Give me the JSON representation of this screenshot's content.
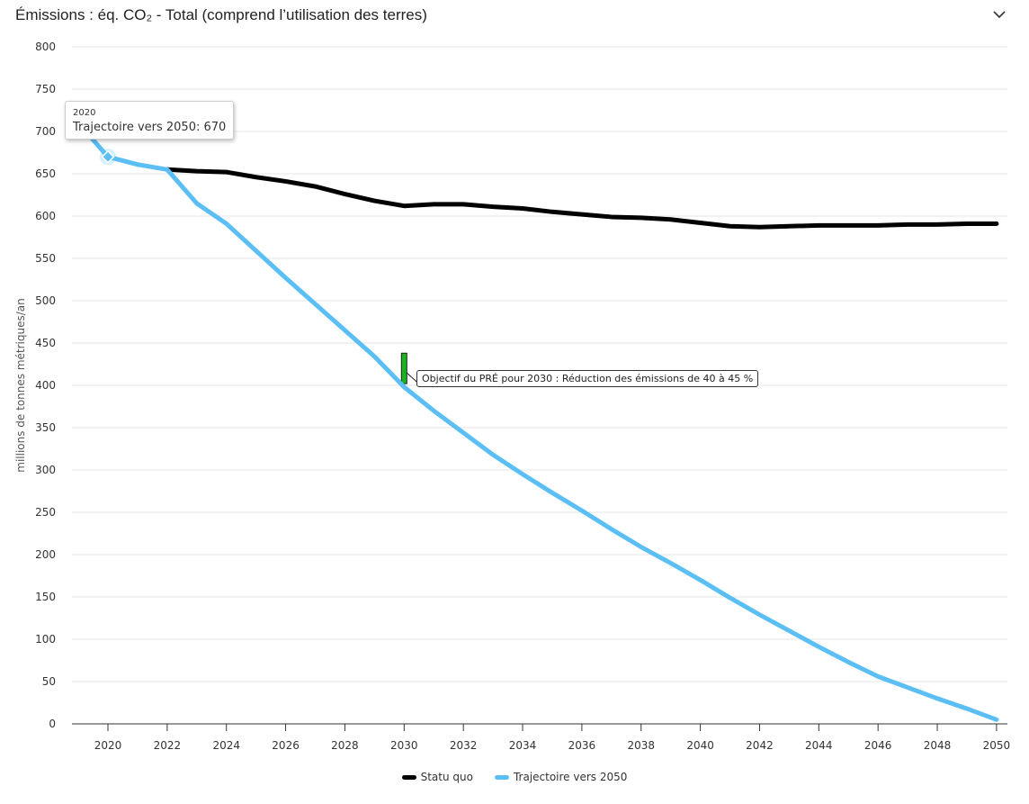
{
  "header": {
    "title": "Émissions : éq. CO₂ - Total (comprend l’utilisation des terres)",
    "collapse_icon": "chevron-down-icon"
  },
  "chart_data": {
    "type": "line",
    "title": "Émissions : éq. CO₂ - Total (comprend l’utilisation des terres)",
    "xlabel": "",
    "ylabel": "millions de tonnes métriques/an",
    "ylim": [
      0,
      800
    ],
    "xlim": [
      2019,
      2050
    ],
    "yticks": [
      "0",
      "50",
      "100",
      "150",
      "200",
      "250",
      "300",
      "350",
      "400",
      "450",
      "500",
      "550",
      "600",
      "650",
      "700",
      "750",
      "800"
    ],
    "xticks": [
      "2020",
      "2022",
      "2024",
      "2026",
      "2028",
      "2030",
      "2032",
      "2034",
      "2036",
      "2038",
      "2040",
      "2042",
      "2044",
      "2046",
      "2048",
      "2050"
    ],
    "grid": true,
    "legend_position": "bottom",
    "series": [
      {
        "name": "Statu quo",
        "color": "#000000",
        "x": [
          2022,
          2023,
          2024,
          2025,
          2026,
          2027,
          2028,
          2029,
          2030,
          2031,
          2032,
          2033,
          2034,
          2035,
          2036,
          2037,
          2038,
          2039,
          2040,
          2041,
          2042,
          2043,
          2044,
          2045,
          2046,
          2047,
          2048,
          2049,
          2050
        ],
        "values": [
          655,
          653,
          652,
          646,
          641,
          635,
          626,
          618,
          612,
          614,
          614,
          611,
          609,
          605,
          602,
          599,
          598,
          596,
          592,
          588,
          587,
          588,
          589,
          589,
          589,
          590,
          590,
          591,
          591
        ]
      },
      {
        "name": "Trajectoire vers 2050",
        "color": "#5bbff5",
        "x": [
          2019,
          2020,
          2021,
          2022,
          2023,
          2024,
          2025,
          2026,
          2027,
          2028,
          2029,
          2030,
          2031,
          2032,
          2033,
          2034,
          2035,
          2036,
          2037,
          2038,
          2039,
          2040,
          2041,
          2042,
          2043,
          2044,
          2045,
          2046,
          2047,
          2048,
          2049,
          2050
        ],
        "values": [
          710,
          670,
          661,
          655,
          615,
          591,
          559,
          527,
          496,
          465,
          434,
          398,
          370,
          344,
          318,
          295,
          273,
          252,
          230,
          209,
          190,
          170,
          149,
          129,
          110,
          91,
          73,
          56,
          43,
          30,
          18,
          5
        ]
      }
    ],
    "annotation": {
      "text": "Objectif du PRÉ pour 2030 : Réduction des émissions de 40 à 45 %",
      "x": 2030,
      "range": [
        402,
        438
      ],
      "color": "#1db31d"
    },
    "tooltip": {
      "year": "2020",
      "text": "Trajectoire vers 2050: 670",
      "series": "Trajectoire vers 2050",
      "x": 2020,
      "value": 670
    }
  }
}
